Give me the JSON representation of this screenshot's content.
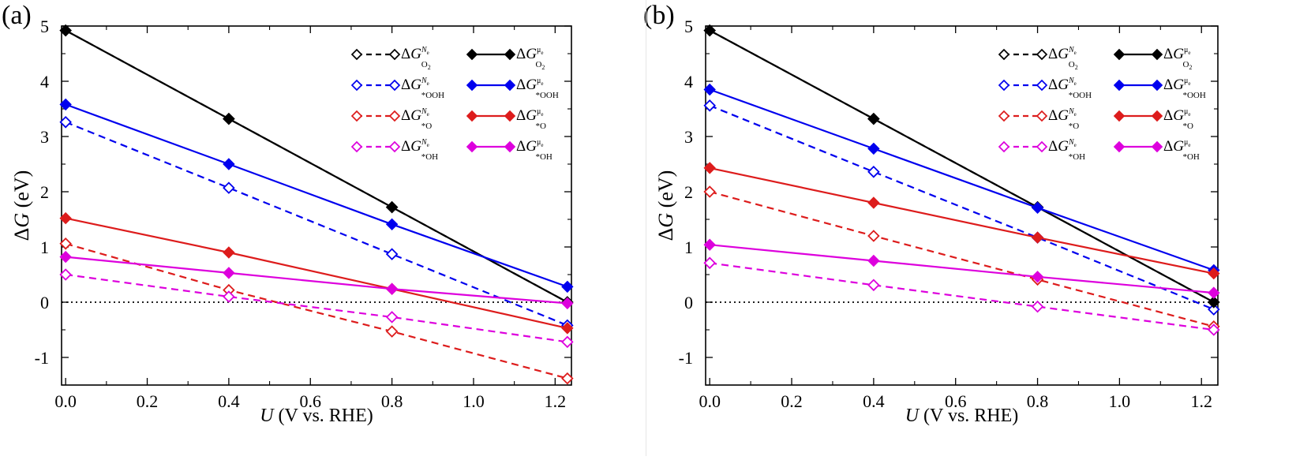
{
  "figure": {
    "panels": [
      "(a)",
      "(b)"
    ]
  },
  "chart_data": [
    {
      "type": "line",
      "panel_label": "(a)",
      "xlabel_italic": "U",
      "xlabel_rest": " (V vs. RHE)",
      "ylabel_prefix": "Δ",
      "ylabel_italic": "G",
      "ylabel_rest": " (eV)",
      "xlim": [
        -0.01,
        1.24
      ],
      "ylim": [
        -1.5,
        5
      ],
      "xticks": [
        "0.0",
        "0.2",
        "0.4",
        "0.6",
        "0.8",
        "1.0",
        "1.2"
      ],
      "xtick_values": [
        0,
        0.2,
        0.4,
        0.6,
        0.8,
        1.0,
        1.2
      ],
      "yticks": [
        "-1",
        "0",
        "1",
        "2",
        "3",
        "4",
        "5"
      ],
      "ytick_values": [
        -1,
        0,
        1,
        2,
        3,
        4,
        5
      ],
      "zero_line": true,
      "x": [
        0,
        0.4,
        0.8,
        1.23
      ],
      "series": [
        {
          "key": "O2_Ne",
          "legend": {
            "sub": "O",
            "subsub": "2",
            "sup": "N",
            "supsub": "e"
          },
          "color": "#000000",
          "style": "dashed",
          "marker": "open-diamond",
          "values": [
            4.92,
            3.32,
            1.72,
            0.0
          ]
        },
        {
          "key": "O2_mu",
          "legend": {
            "sub": "O",
            "subsub": "2",
            "sup": "μ",
            "supsub": "e"
          },
          "color": "#000000",
          "style": "solid",
          "marker": "filled-diamond",
          "values": [
            4.92,
            3.32,
            1.72,
            0.0
          ]
        },
        {
          "key": "OOH_Ne",
          "legend": {
            "sub": "*OOH",
            "subsub": "",
            "sup": "N",
            "supsub": "e"
          },
          "color": "#0000ee",
          "style": "dashed",
          "marker": "open-diamond",
          "values": [
            3.26,
            2.07,
            0.87,
            -0.42
          ]
        },
        {
          "key": "OOH_mu",
          "legend": {
            "sub": "*OOH",
            "subsub": "",
            "sup": "μ",
            "supsub": "e"
          },
          "color": "#0000ee",
          "style": "solid",
          "marker": "filled-diamond",
          "values": [
            3.58,
            2.5,
            1.41,
            0.28
          ]
        },
        {
          "key": "O_Ne",
          "legend": {
            "sub": "*O",
            "subsub": "",
            "sup": "N",
            "supsub": "e"
          },
          "color": "#dd1c1c",
          "style": "dashed",
          "marker": "open-diamond",
          "values": [
            1.06,
            0.22,
            -0.53,
            -1.38
          ]
        },
        {
          "key": "O_mu",
          "legend": {
            "sub": "*O",
            "subsub": "",
            "sup": "μ",
            "supsub": "e"
          },
          "color": "#dd1c1c",
          "style": "solid",
          "marker": "filled-diamond",
          "values": [
            1.52,
            0.9,
            0.24,
            -0.47
          ]
        },
        {
          "key": "OH_Ne",
          "legend": {
            "sub": "*OH",
            "subsub": "",
            "sup": "N",
            "supsub": "e"
          },
          "color": "#dd00dd",
          "style": "dashed",
          "marker": "open-diamond",
          "values": [
            0.5,
            0.1,
            -0.27,
            -0.72
          ]
        },
        {
          "key": "OH_mu",
          "legend": {
            "sub": "*OH",
            "subsub": "",
            "sup": "μ",
            "supsub": "e"
          },
          "color": "#dd00dd",
          "style": "solid",
          "marker": "filled-diamond",
          "values": [
            0.82,
            0.53,
            0.24,
            -0.02
          ]
        }
      ],
      "legend_location": "top-right"
    },
    {
      "type": "line",
      "panel_label": "(b)",
      "xlabel_italic": "U",
      "xlabel_rest": " (V vs. RHE)",
      "ylabel_prefix": "Δ",
      "ylabel_italic": "G",
      "ylabel_rest": " (eV)",
      "xlim": [
        -0.01,
        1.24
      ],
      "ylim": [
        -1.5,
        5
      ],
      "xticks": [
        "0.0",
        "0.2",
        "0.4",
        "0.6",
        "0.8",
        "1.0",
        "1.2"
      ],
      "xtick_values": [
        0,
        0.2,
        0.4,
        0.6,
        0.8,
        1.0,
        1.2
      ],
      "yticks": [
        "-1",
        "0",
        "1",
        "2",
        "3",
        "4",
        "5"
      ],
      "ytick_values": [
        -1,
        0,
        1,
        2,
        3,
        4,
        5
      ],
      "zero_line": true,
      "x": [
        0,
        0.4,
        0.8,
        1.23
      ],
      "series": [
        {
          "key": "O2_Ne",
          "legend": {
            "sub": "O",
            "subsub": "2",
            "sup": "N",
            "supsub": "e"
          },
          "color": "#000000",
          "style": "dashed",
          "marker": "open-diamond",
          "values": [
            4.92,
            3.32,
            1.72,
            0.0
          ]
        },
        {
          "key": "O2_mu",
          "legend": {
            "sub": "O",
            "subsub": "2",
            "sup": "μ",
            "supsub": "e"
          },
          "color": "#000000",
          "style": "solid",
          "marker": "filled-diamond",
          "values": [
            4.92,
            3.32,
            1.72,
            0.0
          ]
        },
        {
          "key": "OOH_Ne",
          "legend": {
            "sub": "*OOH",
            "subsub": "",
            "sup": "N",
            "supsub": "e"
          },
          "color": "#0000ee",
          "style": "dashed",
          "marker": "open-diamond",
          "values": [
            3.56,
            2.36,
            1.17,
            -0.13
          ]
        },
        {
          "key": "OOH_mu",
          "legend": {
            "sub": "*OOH",
            "subsub": "",
            "sup": "μ",
            "supsub": "e"
          },
          "color": "#0000ee",
          "style": "solid",
          "marker": "filled-diamond",
          "values": [
            3.85,
            2.78,
            1.71,
            0.58
          ]
        },
        {
          "key": "O_Ne",
          "legend": {
            "sub": "*O",
            "subsub": "",
            "sup": "N",
            "supsub": "e"
          },
          "color": "#dd1c1c",
          "style": "dashed",
          "marker": "open-diamond",
          "values": [
            2.0,
            1.2,
            0.41,
            -0.44
          ]
        },
        {
          "key": "O_mu",
          "legend": {
            "sub": "*O",
            "subsub": "",
            "sup": "μ",
            "supsub": "e"
          },
          "color": "#dd1c1c",
          "style": "solid",
          "marker": "filled-diamond",
          "values": [
            2.43,
            1.8,
            1.17,
            0.52
          ]
        },
        {
          "key": "OH_Ne",
          "legend": {
            "sub": "*OH",
            "subsub": "",
            "sup": "N",
            "supsub": "e"
          },
          "color": "#dd00dd",
          "style": "dashed",
          "marker": "open-diamond",
          "values": [
            0.71,
            0.31,
            -0.08,
            -0.5
          ]
        },
        {
          "key": "OH_mu",
          "legend": {
            "sub": "*OH",
            "subsub": "",
            "sup": "μ",
            "supsub": "e"
          },
          "color": "#dd00dd",
          "style": "solid",
          "marker": "filled-diamond",
          "values": [
            1.04,
            0.75,
            0.46,
            0.17
          ]
        }
      ],
      "legend_location": "top-right"
    }
  ]
}
